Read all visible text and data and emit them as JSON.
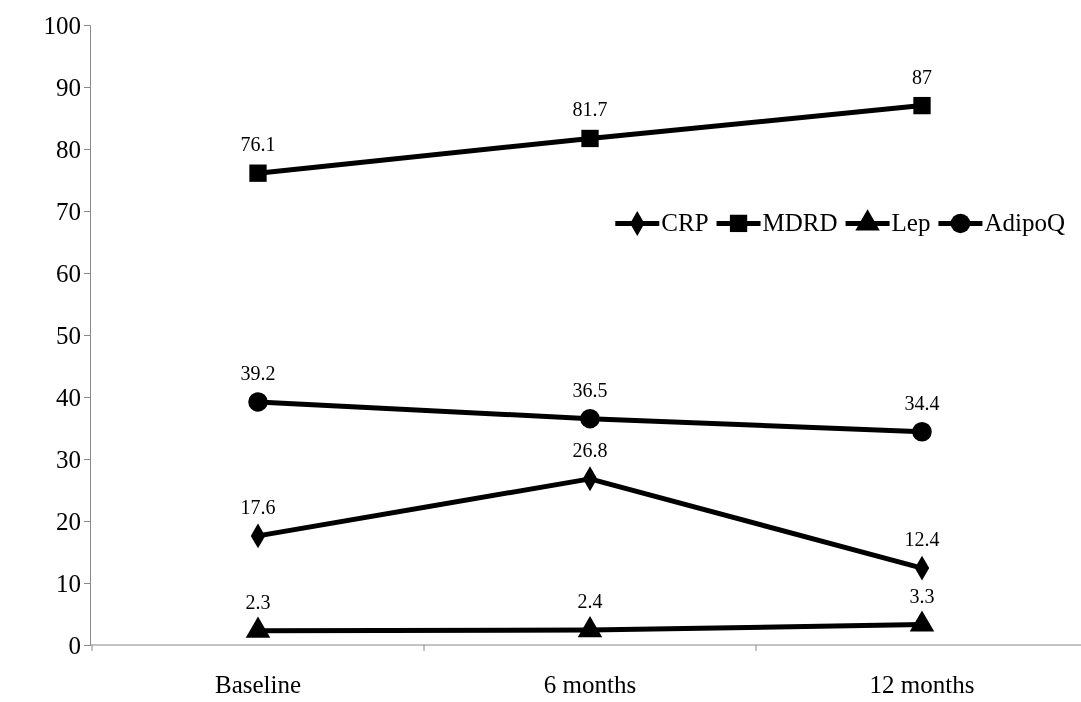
{
  "chart_data": {
    "type": "line",
    "categories": [
      "Baseline",
      "6 months",
      "12 months"
    ],
    "series": [
      {
        "name": "CRP",
        "color": "#000000",
        "marker": "diamond",
        "values": [
          17.6,
          26.8,
          12.4
        ]
      },
      {
        "name": "MDRD",
        "color": "#000000",
        "marker": "square",
        "values": [
          76.1,
          81.7,
          87
        ]
      },
      {
        "name": "Lep",
        "color": "#000000",
        "marker": "triangle",
        "values": [
          2.3,
          2.4,
          3.3
        ]
      },
      {
        "name": "AdipoQ",
        "color": "#000000",
        "marker": "circle",
        "values": [
          39.2,
          36.5,
          34.4
        ]
      }
    ],
    "ylim": [
      0,
      100
    ],
    "yticks": [
      0,
      10,
      20,
      30,
      40,
      50,
      60,
      70,
      80,
      90,
      100
    ],
    "data_labels": true,
    "legend": "top right",
    "grid": false,
    "line_style": "solid"
  }
}
